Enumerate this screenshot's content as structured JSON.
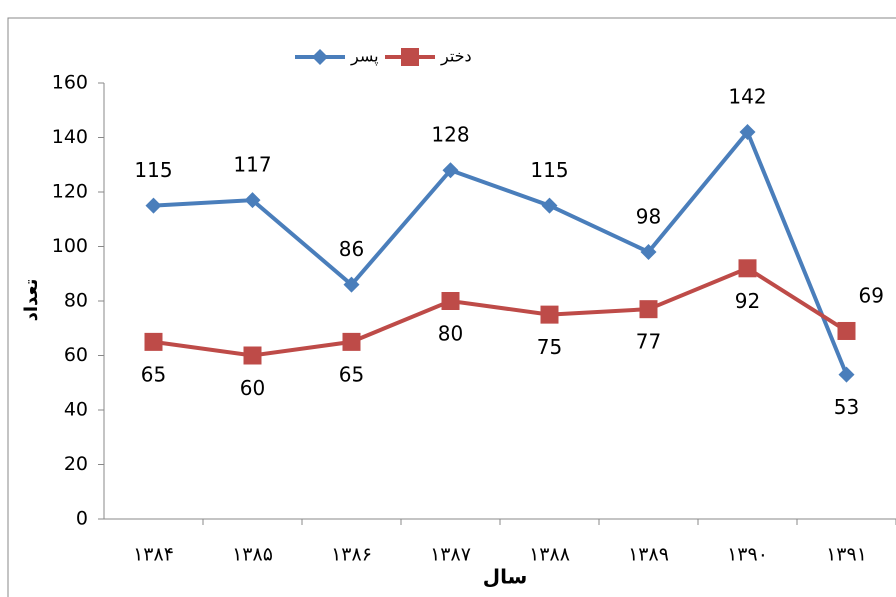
{
  "chart_data": {
    "type": "line",
    "categories": [
      "۱۳۸۴",
      "۱۳۸۵",
      "۱۳۸۶",
      "۱۳۸۷",
      "۱۳۸۸",
      "۱۳۸۹",
      "۱۳۹۰",
      "۱۳۹۱"
    ],
    "series": [
      {
        "name": "پسر",
        "color": "#4a7ebb",
        "marker": "diamond",
        "values": [
          115,
          117,
          86,
          128,
          115,
          98,
          142,
          53
        ]
      },
      {
        "name": "دختر",
        "color": "#be4b48",
        "marker": "square",
        "values": [
          65,
          60,
          65,
          80,
          75,
          77,
          92,
          69
        ]
      }
    ],
    "xlabel": "سال",
    "ylabel": "تعداد",
    "ylim": [
      0,
      160
    ],
    "yticks": [
      0,
      20,
      40,
      60,
      80,
      100,
      120,
      140,
      160
    ],
    "legend": "top",
    "grid": false
  }
}
